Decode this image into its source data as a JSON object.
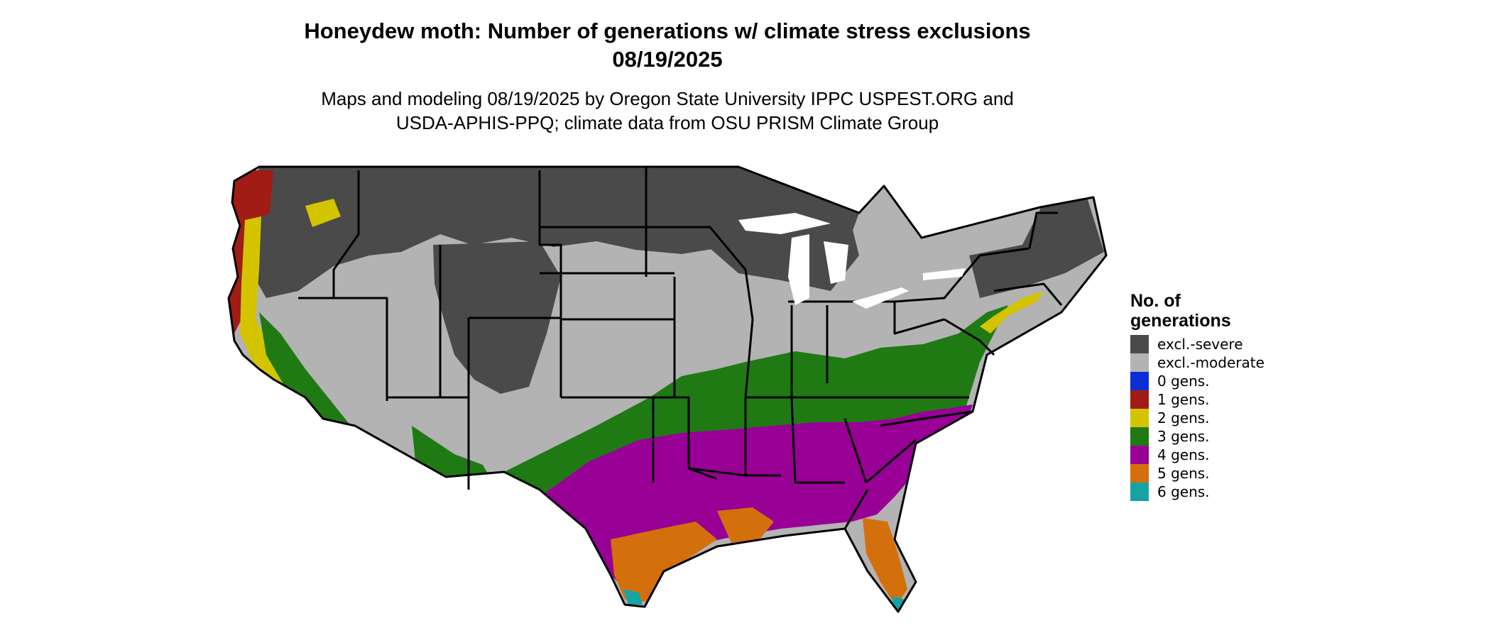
{
  "title_line1": "Honeydew moth: Number of generations w/ climate stress exclusions",
  "title_line2": "08/19/2025",
  "subtitle_line1": "Maps and modeling 08/19/2025 by Oregon State University IPPC USPEST.ORG and",
  "subtitle_line2": "USDA-APHIS-PPQ; climate data from OSU PRISM Climate Group",
  "legend": {
    "title": "No. of generations",
    "items": [
      {
        "label": "excl.-severe",
        "color": "#4a4a4a",
        "icon": "swatch-dark-gray"
      },
      {
        "label": "excl.-moderate",
        "color": "#b3b3b3",
        "icon": "swatch-light-gray"
      },
      {
        "label": "0 gens.",
        "color": "#0a2fd6",
        "icon": "swatch-blue"
      },
      {
        "label": "1 gens.",
        "color": "#a01c14",
        "icon": "swatch-red"
      },
      {
        "label": "2 gens.",
        "color": "#d4c400",
        "icon": "swatch-yellow"
      },
      {
        "label": "3 gens.",
        "color": "#1f7a14",
        "icon": "swatch-green"
      },
      {
        "label": "4 gens.",
        "color": "#980096",
        "icon": "swatch-purple"
      },
      {
        "label": "5 gens.",
        "color": "#d4700c",
        "icon": "swatch-orange"
      },
      {
        "label": "6 gens.",
        "color": "#16a3a3",
        "icon": "swatch-teal"
      }
    ]
  }
}
